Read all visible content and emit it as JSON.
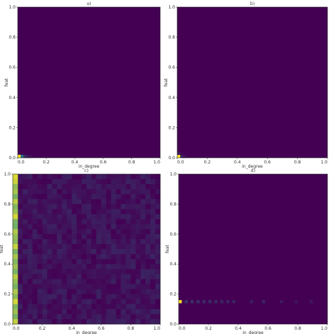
{
  "colors": {
    "low": "#440154",
    "mid": "#21918c",
    "high": "#fde725",
    "background": "#ffffff"
  },
  "chart_data": [
    {
      "type": "heatmap",
      "title": "a)",
      "xlabel": "in_degree",
      "ylabel": "feat",
      "xlim": [
        0,
        1
      ],
      "ylim": [
        0,
        1
      ],
      "xticks": [
        "0.0",
        "0.2",
        "0.4",
        "0.6",
        "0.8",
        "1.0"
      ],
      "yticks": [
        "0.0",
        "0.2",
        "0.4",
        "0.6",
        "0.8",
        "1.0"
      ],
      "grid": false,
      "hot_cells": [
        {
          "x": 0.01,
          "y": 0.01,
          "value": 1.0
        },
        {
          "x": 0.03,
          "y": 0.01,
          "value": 0.4
        },
        {
          "x": 0.05,
          "y": 0.01,
          "value": 0.15
        },
        {
          "x": 0.07,
          "y": 0.01,
          "value": 0.08
        },
        {
          "x": 0.09,
          "y": 0.01,
          "value": 0.05
        }
      ]
    },
    {
      "type": "heatmap",
      "title": "b)",
      "xlabel": "in_degree",
      "ylabel": "feat",
      "xlim": [
        0,
        1
      ],
      "ylim": [
        0,
        1
      ],
      "xticks": [
        "0.0",
        "0.2",
        "0.4",
        "0.6",
        "0.8",
        "1.0"
      ],
      "yticks": [
        "0.0",
        "0.2",
        "0.4",
        "0.6",
        "0.8",
        "1.0"
      ],
      "grid": false,
      "hot_cells": [
        {
          "x": 0.01,
          "y": 0.01,
          "value": 1.0
        },
        {
          "x": 0.03,
          "y": 0.01,
          "value": 0.12
        },
        {
          "x": 0.01,
          "y": 0.03,
          "value": 0.1
        },
        {
          "x": 0.05,
          "y": 0.01,
          "value": 0.05
        }
      ]
    },
    {
      "type": "heatmap",
      "title": "c)",
      "xlabel": "in_degree",
      "ylabel": "feat",
      "xlim": [
        0,
        1
      ],
      "ylim": [
        0,
        1
      ],
      "xticks": [
        "0.0",
        "0.2",
        "0.4",
        "0.6",
        "0.8",
        "1.0"
      ],
      "yticks": [
        "0.0",
        "0.2",
        "0.4",
        "0.6",
        "0.8",
        "1.0"
      ],
      "grid": false,
      "first_column_values": [
        0.92,
        0.88,
        0.75,
        0.8,
        0.7,
        0.85,
        0.72,
        0.78,
        0.9,
        0.7,
        0.68,
        0.82,
        0.76,
        0.74,
        0.88,
        0.7,
        0.8,
        0.72,
        0.78,
        0.7,
        0.84,
        0.76,
        0.7,
        0.82,
        0.74,
        0.9,
        0.72,
        0.78,
        0.7,
        0.86
      ],
      "background_noise": 0.12
    },
    {
      "type": "heatmap",
      "title": "d)",
      "xlabel": "in_degree",
      "ylabel": "feat",
      "xlim": [
        0,
        1
      ],
      "ylim": [
        0,
        1
      ],
      "xticks": [
        "0.0",
        "0.2",
        "0.4",
        "0.6",
        "0.8",
        "1.0"
      ],
      "yticks": [
        "0.0",
        "0.2",
        "0.4",
        "0.6",
        "0.8",
        "1.0"
      ],
      "grid": false,
      "hot_cells": [
        {
          "x": 0.01,
          "y": 0.15,
          "value": 1.0
        },
        {
          "x": 0.05,
          "y": 0.15,
          "value": 0.18
        },
        {
          "x": 0.09,
          "y": 0.15,
          "value": 0.16
        },
        {
          "x": 0.13,
          "y": 0.15,
          "value": 0.16
        },
        {
          "x": 0.17,
          "y": 0.15,
          "value": 0.15
        },
        {
          "x": 0.21,
          "y": 0.15,
          "value": 0.15
        },
        {
          "x": 0.25,
          "y": 0.15,
          "value": 0.14
        },
        {
          "x": 0.29,
          "y": 0.15,
          "value": 0.13
        },
        {
          "x": 0.33,
          "y": 0.15,
          "value": 0.12
        },
        {
          "x": 0.37,
          "y": 0.15,
          "value": 0.12
        },
        {
          "x": 0.49,
          "y": 0.15,
          "value": 0.1
        },
        {
          "x": 0.57,
          "y": 0.15,
          "value": 0.12
        },
        {
          "x": 0.69,
          "y": 0.15,
          "value": 0.09
        },
        {
          "x": 0.79,
          "y": 0.15,
          "value": 0.07
        },
        {
          "x": 0.89,
          "y": 0.15,
          "value": 0.08
        }
      ]
    }
  ]
}
